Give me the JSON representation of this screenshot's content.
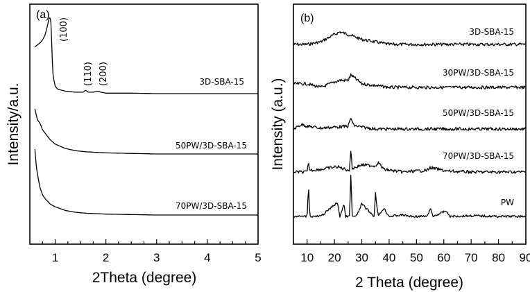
{
  "chart_data": [
    {
      "panel": "(a)",
      "type": "line",
      "xlabel": "2Theta (degree)",
      "ylabel": "Intensity/a.u.",
      "xlim": [
        0.5,
        5
      ],
      "xticks": [
        1,
        2,
        3,
        4,
        5
      ],
      "series": [
        {
          "name": "3D-SBA-15",
          "x": [
            0.6,
            0.65,
            0.7,
            0.75,
            0.8,
            0.85,
            0.88,
            0.9,
            0.92,
            0.94,
            0.96,
            1.0,
            1.05,
            1.2,
            1.4,
            1.55,
            1.6,
            1.65,
            1.75,
            1.85,
            1.9,
            2.0,
            2.5,
            3,
            4,
            5
          ],
          "y": [
            70,
            72,
            74,
            77,
            82,
            92,
            99,
            100,
            93,
            60,
            40,
            30,
            27,
            25,
            24,
            24,
            26,
            24,
            24,
            25,
            24,
            23,
            23,
            22.5,
            22.5,
            22.5
          ]
        },
        {
          "name": "50PW/3D-SBA-15",
          "x": [
            0.6,
            0.65,
            0.7,
            0.75,
            0.8,
            0.9,
            1.0,
            1.2,
            1.4,
            1.6,
            1.8,
            2.0,
            2.5,
            3,
            4,
            5
          ],
          "y": [
            68,
            58,
            55,
            49,
            46,
            40,
            36,
            32,
            30,
            29,
            28.5,
            28,
            27.5,
            27,
            27,
            27
          ]
        },
        {
          "name": "70PW/3D-SBA-15",
          "x": [
            0.6,
            0.63,
            0.66,
            0.7,
            0.75,
            0.8,
            0.9,
            1.0,
            1.2,
            1.4,
            1.6,
            2.0,
            2.5,
            3,
            4,
            5
          ],
          "y": [
            100,
            80,
            70,
            58,
            50,
            46,
            40,
            37,
            33,
            31,
            30,
            29,
            28.5,
            28,
            28,
            28
          ]
        }
      ],
      "peaks": [
        {
          "label": "(100)",
          "x": 0.9
        },
        {
          "label": "(110)",
          "x": 1.6
        },
        {
          "label": "(200)",
          "x": 1.85
        }
      ]
    },
    {
      "panel": "(b)",
      "type": "line",
      "xlabel": "2 Theta (degree)",
      "ylabel": "Intensity (a.u.)",
      "xlim": [
        5,
        90
      ],
      "xticks": [
        10,
        20,
        30,
        40,
        50,
        60,
        70,
        80,
        90
      ],
      "series": [
        {
          "name": "3D-SBA-15",
          "x": [
            5,
            10,
            15,
            20,
            22,
            25,
            30,
            35,
            40,
            50,
            60,
            70,
            80,
            90
          ],
          "y": [
            10,
            10,
            11,
            14,
            15,
            14,
            12,
            11,
            10,
            10,
            10,
            10,
            10,
            10
          ]
        },
        {
          "name": "30PW/3D-SBA-15",
          "x": [
            5,
            10,
            15,
            20,
            22,
            25,
            26,
            30,
            35,
            40,
            50,
            60,
            70,
            80,
            90
          ],
          "y": [
            12,
            12,
            10,
            13,
            14,
            14,
            17,
            12,
            11,
            10,
            10,
            10,
            10,
            10,
            10
          ]
        },
        {
          "name": "50PW/3D-SBA-15",
          "x": [
            5,
            8,
            10,
            15,
            20,
            25,
            26,
            27,
            30,
            35,
            40,
            50,
            60,
            70,
            80,
            90
          ],
          "y": [
            10,
            15,
            13,
            11,
            12,
            13,
            22,
            14,
            12,
            10,
            10,
            10,
            10,
            10,
            10,
            10
          ]
        },
        {
          "name": "70PW/3D-SBA-15",
          "x": [
            5,
            10,
            10.5,
            11,
            15,
            21,
            23,
            25.5,
            26,
            26.5,
            30,
            35,
            36,
            38,
            45,
            54,
            55,
            61,
            70,
            80,
            90
          ],
          "y": [
            10,
            10,
            20,
            12,
            13,
            16,
            14,
            12,
            35,
            14,
            18,
            17,
            21,
            13,
            10,
            12,
            15,
            11,
            10,
            10,
            10
          ]
        },
        {
          "name": "PW",
          "x": [
            5,
            10,
            10.5,
            11,
            15,
            21,
            22,
            23.5,
            24,
            25.5,
            26,
            26.5,
            28,
            30,
            34.5,
            35,
            36,
            38,
            40,
            45,
            48,
            54,
            55,
            56,
            61,
            62,
            70,
            80,
            90
          ],
          "y": [
            10,
            10,
            55,
            10,
            10,
            30,
            10,
            28,
            10,
            10,
            70,
            10,
            10,
            28,
            10,
            44,
            10,
            22,
            10,
            12,
            10,
            10,
            22,
            10,
            18,
            10,
            11,
            10,
            10
          ]
        }
      ]
    }
  ]
}
